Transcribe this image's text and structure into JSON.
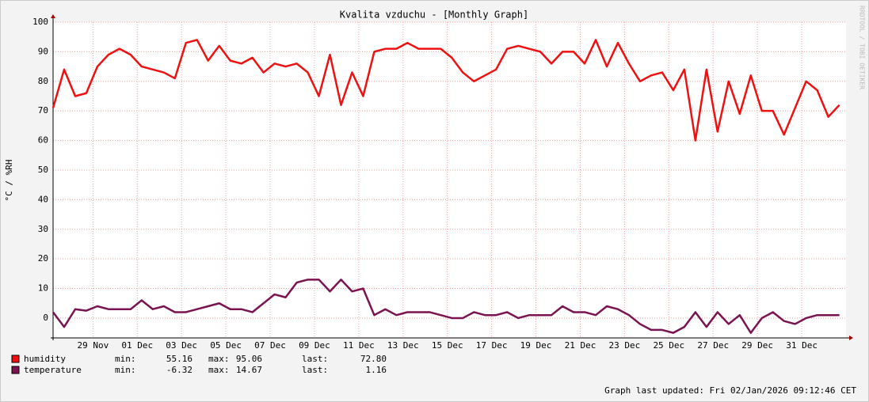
{
  "chart_data": {
    "type": "line",
    "title": "Kvalita vzduchu - [Monthly Graph]",
    "y_label": "°C / %RH",
    "side_note": "RRDTOOL / TOBI OETIKER",
    "footer": "Graph last updated: Fri 02/Jan/2026 09:12:46 CET",
    "x": [
      27.2,
      27.7,
      28.2,
      28.7,
      29.2,
      29.7,
      30.2,
      30.7,
      31.2,
      31.7,
      32.2,
      32.7,
      33.2,
      33.7,
      34.2,
      34.7,
      35.2,
      35.7,
      36.2,
      36.7,
      37.2,
      37.7,
      38.2,
      38.7,
      39.2,
      39.7,
      40.2,
      40.7,
      41.2,
      41.7,
      42.2,
      42.7,
      43.2,
      43.7,
      44.2,
      44.7,
      45.2,
      45.7,
      46.2,
      46.7,
      47.2,
      47.7,
      48.2,
      48.7,
      49.2,
      49.7,
      50.2,
      50.7,
      51.2,
      51.7,
      52.2,
      52.7,
      53.2,
      53.7,
      54.2,
      54.7,
      55.2,
      55.7,
      56.2,
      56.7,
      57.2,
      57.7,
      58.2,
      58.7,
      59.2,
      59.7,
      60.2,
      60.7,
      61.2,
      61.7,
      62.2,
      62.7
    ],
    "series": [
      {
        "name": "humidity",
        "color": "#ee1111",
        "values": [
          71,
          84,
          75,
          76,
          85,
          89,
          91,
          89,
          85,
          84,
          83,
          81,
          93,
          94,
          87,
          92,
          87,
          86,
          88,
          83,
          86,
          85,
          86,
          83,
          75,
          89,
          72,
          83,
          75,
          90,
          91,
          91,
          93,
          91,
          91,
          91,
          88,
          83,
          80,
          82,
          84,
          91,
          92,
          91,
          90,
          86,
          90,
          90,
          86,
          94,
          85,
          93,
          86,
          80,
          82,
          83,
          77,
          84,
          60,
          84,
          63,
          80,
          69,
          82,
          70,
          70,
          62,
          71,
          80,
          77,
          68,
          72
        ],
        "stats": [
          55.16,
          95.06,
          {
            "value": 72.8,
            "label": "72.80"
          }
        ]
      },
      {
        "name": "temperature",
        "color": "#7a1450",
        "values": [
          2,
          -3,
          3,
          2.5,
          4,
          3,
          3,
          3,
          6,
          3,
          4,
          2,
          2,
          3,
          4,
          5,
          3,
          3,
          2,
          5,
          8,
          7,
          12,
          13,
          13,
          9,
          13,
          9,
          10,
          1,
          3,
          1,
          2,
          2,
          2,
          1,
          0,
          0,
          2,
          1,
          1,
          2,
          0,
          1,
          1,
          1,
          4,
          2,
          2,
          1,
          4,
          3,
          1,
          -2,
          -4,
          -4,
          -5,
          -3,
          2,
          -3,
          2,
          -2,
          1,
          -5,
          0,
          2,
          -1,
          -2,
          0,
          1,
          1,
          1
        ],
        "stats": [
          -6.32,
          14.67,
          1.16
        ]
      }
    ],
    "stat_labels": [
      "min:",
      "max:",
      "last:"
    ],
    "xlim": [
      27.2,
      63.0
    ],
    "xticks": [
      {
        "value": 29,
        "label": "29 Nov"
      },
      {
        "value": 31,
        "label": "01 Dec"
      },
      {
        "value": 33,
        "label": "03 Dec"
      },
      {
        "value": 35,
        "label": "05 Dec"
      },
      {
        "value": 37,
        "label": "07 Dec"
      },
      {
        "value": 39,
        "label": "09 Dec"
      },
      {
        "value": 41,
        "label": "11 Dec"
      },
      {
        "value": 43,
        "label": "13 Dec"
      },
      {
        "value": 45,
        "label": "15 Dec"
      },
      {
        "value": 47,
        "label": "17 Dec"
      },
      {
        "value": 49,
        "label": "19 Dec"
      },
      {
        "value": 51,
        "label": "21 Dec"
      },
      {
        "value": 53,
        "label": "23 Dec"
      },
      {
        "value": 55,
        "label": "25 Dec"
      },
      {
        "value": 57,
        "label": "27 Dec"
      },
      {
        "value": 59,
        "label": "29 Dec"
      },
      {
        "value": 61,
        "label": "31 Dec"
      }
    ],
    "ylim": [
      -6.7,
      100
    ],
    "yticks": [
      0,
      10,
      20,
      30,
      40,
      50,
      60,
      70,
      80,
      90,
      100
    ],
    "grid": true
  }
}
